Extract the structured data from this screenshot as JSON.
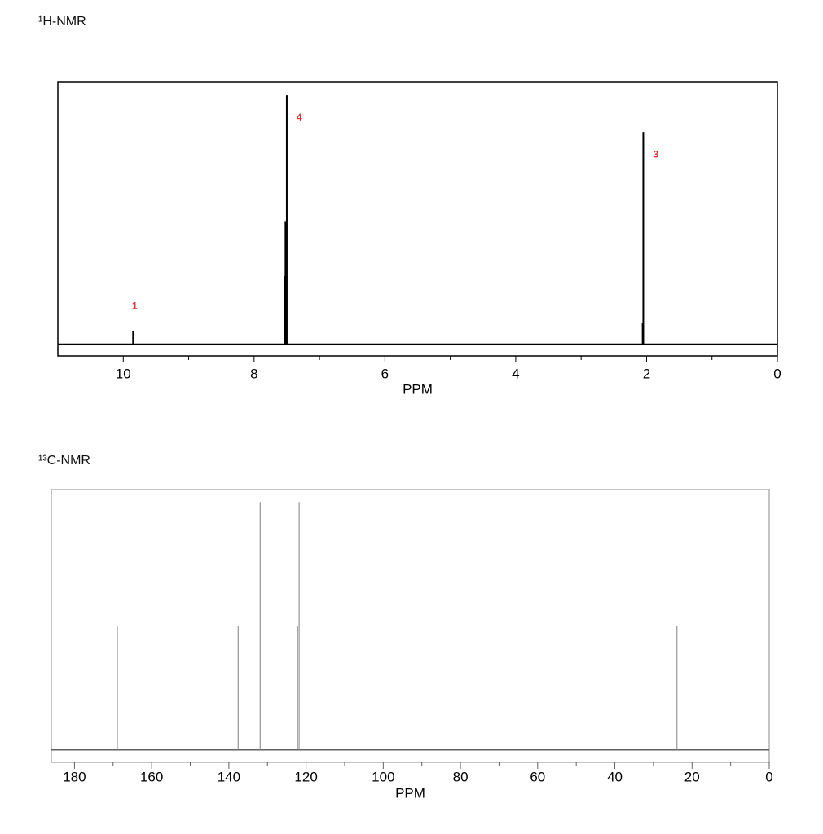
{
  "chart_data": [
    {
      "type": "stem",
      "title": "¹H-NMR",
      "x_label": "PPM",
      "x": [
        9.85,
        7.53,
        7.52,
        7.5,
        2.06,
        2.05
      ],
      "values": [
        0.05,
        0.26,
        0.47,
        0.95,
        0.08,
        0.81
      ],
      "color": "#000000",
      "xlim": [
        11,
        0
      ],
      "xticks": [
        10,
        8,
        6,
        4,
        2,
        0
      ],
      "xminor_ticks": [
        9,
        7,
        5,
        3,
        1
      ],
      "ylim": [
        -0.045,
        1
      ],
      "annotations": [
        {
          "text": "1",
          "x": 9.85,
          "placement": "above"
        },
        {
          "text": "4",
          "x": 7.5,
          "placement": "right"
        },
        {
          "text": "3",
          "x": 2.05,
          "placement": "right"
        }
      ]
    },
    {
      "type": "stem",
      "title": "¹³C-NMR",
      "x_label": "PPM",
      "x": [
        168.9,
        137.6,
        131.9,
        122.2,
        121.8,
        23.9
      ],
      "values": [
        0.5,
        0.5,
        1,
        0.5,
        1,
        0.5
      ],
      "color": "#808080",
      "xlim": [
        186,
        0
      ],
      "xticks": [
        180,
        160,
        140,
        120,
        100,
        80,
        60,
        40,
        20,
        0
      ],
      "xminor_ticks": [
        170,
        150,
        130,
        110,
        90,
        70,
        50,
        30,
        10
      ],
      "ylim": [
        -0.05,
        1.05
      ]
    }
  ]
}
